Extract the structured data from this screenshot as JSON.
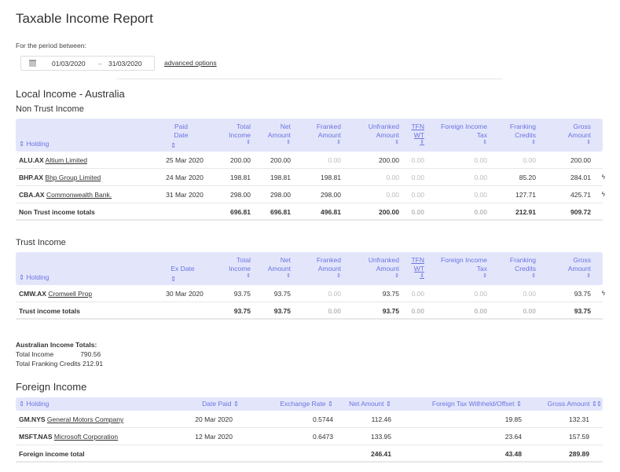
{
  "page": {
    "title": "Taxable Income Report",
    "period_label": "For the period between:",
    "start_date": "01/03/2020",
    "date_sep": "–",
    "end_date": "31/03/2020",
    "advanced_options": "advanced options"
  },
  "local": {
    "title": "Local Income - Australia",
    "non_trust": {
      "title": "Non Trust Income",
      "headers": {
        "holding": "Holding",
        "paid_date_1": "Paid",
        "paid_date_2": "Date",
        "total_1": "Total",
        "total_2": "Income",
        "net_1": "Net",
        "net_2": "Amount",
        "franked_1": "Franked",
        "franked_2": "Amount",
        "unfranked_1": "Unfranked",
        "unfranked_2": "Amount",
        "tfn_1": "TFN",
        "tfn_2": "WT",
        "foreign_1": "Foreign Income",
        "foreign_2": "Tax",
        "franking_1": "Franking",
        "franking_2": "Credits",
        "gross_1": "Gross",
        "gross_2": "Amount"
      },
      "rows": [
        {
          "code": "ALU.AX",
          "name": "Altium Limited",
          "date": "25 Mar 2020",
          "total": "200.00",
          "net": "200.00",
          "franked": "0.00",
          "unfranked": "200.00",
          "tfn": "0.00",
          "foreign": "0.00",
          "franking": "0.00",
          "gross": "200.00",
          "flash": ""
        },
        {
          "code": "BHP.AX",
          "name": "Bhp Group Limited",
          "date": "24 Mar 2020",
          "total": "198.81",
          "net": "198.81",
          "franked": "198.81",
          "unfranked": "0.00",
          "tfn": "0.00",
          "foreign": "0.00",
          "franking": "85.20",
          "gross": "284.01",
          "flash": "ϟ"
        },
        {
          "code": "CBA.AX",
          "name": "Commonwealth Bank.",
          "date": "31 Mar 2020",
          "total": "298.00",
          "net": "298.00",
          "franked": "298.00",
          "unfranked": "0.00",
          "tfn": "0.00",
          "foreign": "0.00",
          "franking": "127.71",
          "gross": "425.71",
          "flash": "ϟ"
        }
      ],
      "totals": {
        "label": "Non Trust income totals",
        "total": "696.81",
        "net": "696.81",
        "franked": "496.81",
        "unfranked": "200.00",
        "tfn": "0.00",
        "foreign": "0.00",
        "franking": "212.91",
        "gross": "909.72"
      }
    },
    "trust": {
      "title": "Trust Income",
      "headers": {
        "holding": "Holding",
        "ex_date": "Ex Date",
        "total_1": "Total",
        "total_2": "Income",
        "net_1": "Net",
        "net_2": "Amount",
        "franked_1": "Franked",
        "franked_2": "Amount",
        "unfranked_1": "Unfranked",
        "unfranked_2": "Amount",
        "tfn_1": "TFN",
        "tfn_2": "WT",
        "foreign_1": "Foreign Income",
        "foreign_2": "Tax",
        "franking_1": "Franking",
        "franking_2": "Credits",
        "gross_1": "Gross",
        "gross_2": "Amount"
      },
      "rows": [
        {
          "code": "CMW.AX",
          "name": "Cromwell Prop",
          "date": "30 Mar 2020",
          "total": "93.75",
          "net": "93.75",
          "franked": "0.00",
          "unfranked": "93.75",
          "tfn": "0.00",
          "foreign": "0.00",
          "franking": "0.00",
          "gross": "93.75",
          "flash": "ϟ"
        }
      ],
      "totals": {
        "label": "Trust income totals",
        "total": "93.75",
        "net": "93.75",
        "franked": "0.00",
        "unfranked": "93.75",
        "tfn": "0.00",
        "foreign": "0.00",
        "franking": "0.00",
        "gross": "93.75"
      }
    },
    "au_totals": {
      "heading": "Australian Income Totals:",
      "total_income_label": "Total Income",
      "total_income_value": "790.56",
      "franking_label": "Total Franking Credits",
      "franking_value": "212.91"
    }
  },
  "foreign": {
    "title": "Foreign Income",
    "headers": {
      "holding": "Holding",
      "date_paid": "Date Paid",
      "exchange": "Exchange Rate",
      "net": "Net Amount",
      "withheld": "Foreign Tax Withheld/Offset",
      "gross": "Gross Amount"
    },
    "rows": [
      {
        "code": "GM.NYS",
        "name": "General Motors Company",
        "date": "20 Mar 2020",
        "exchange": "0.5744",
        "net": "112.46",
        "withheld": "19.85",
        "gross": "132.31"
      },
      {
        "code": "MSFT.NAS",
        "name": "Microsoft Corporation",
        "date": "12 Mar 2020",
        "exchange": "0.6473",
        "net": "133.95",
        "withheld": "23.64",
        "gross": "157.59"
      }
    ],
    "totals": {
      "label": "Foreign income total",
      "net": "246.41",
      "withheld": "43.48",
      "gross": "289.89"
    }
  },
  "icons": {
    "sort": "⇕",
    "calendar": "calendar-icon"
  },
  "colors": {
    "header_bg": "#e3e6fb",
    "header_text": "#6b73e0",
    "muted": "#bbbbbb"
  }
}
